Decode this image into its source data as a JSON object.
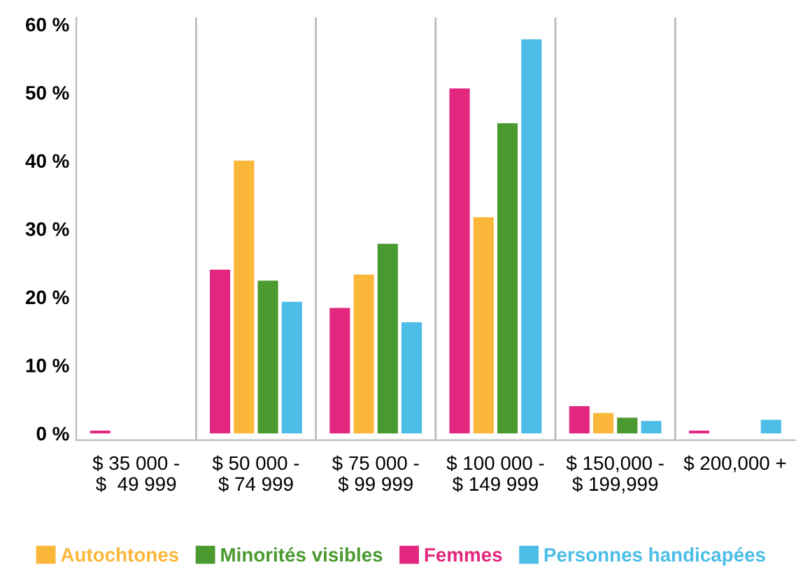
{
  "chart_data": {
    "type": "bar",
    "categories": [
      "$ 35 000 -\n$  49 999",
      "$ 50 000 -\n$ 74 999",
      "$ 75 000 -\n$ 99 999",
      "$ 100 000 -\n$ 149 999",
      "$ 150,000 -\n$ 199,999",
      "$ 200,000 +"
    ],
    "series": [
      {
        "name": "Femmes",
        "color": "#e2277f",
        "values": [
          0.4,
          24,
          18.4,
          50.6,
          4,
          0.4
        ]
      },
      {
        "name": "Autochtones",
        "color": "#fbb73a",
        "values": [
          0,
          40,
          23.3,
          31.7,
          3,
          0
        ]
      },
      {
        "name": "Minorités visibles",
        "color": "#4a9a2f",
        "values": [
          0,
          22.4,
          27.8,
          45.5,
          2.3,
          0
        ]
      },
      {
        "name": "Personnes handicapées",
        "color": "#4bbde6",
        "values": [
          0,
          19.3,
          16.3,
          57.8,
          1.8,
          2
        ]
      }
    ],
    "ylim": [
      -1,
      61
    ],
    "yticks": [
      {
        "value": 0,
        "label": "0 %"
      },
      {
        "value": 10,
        "label": "10 %"
      },
      {
        "value": 20,
        "label": "20 %"
      },
      {
        "value": 30,
        "label": "30 %"
      },
      {
        "value": 40,
        "label": "40 %"
      },
      {
        "value": 50,
        "label": "50 %"
      },
      {
        "value": 60,
        "label": "60 %"
      }
    ],
    "grid": "x",
    "legend": "bottom"
  }
}
